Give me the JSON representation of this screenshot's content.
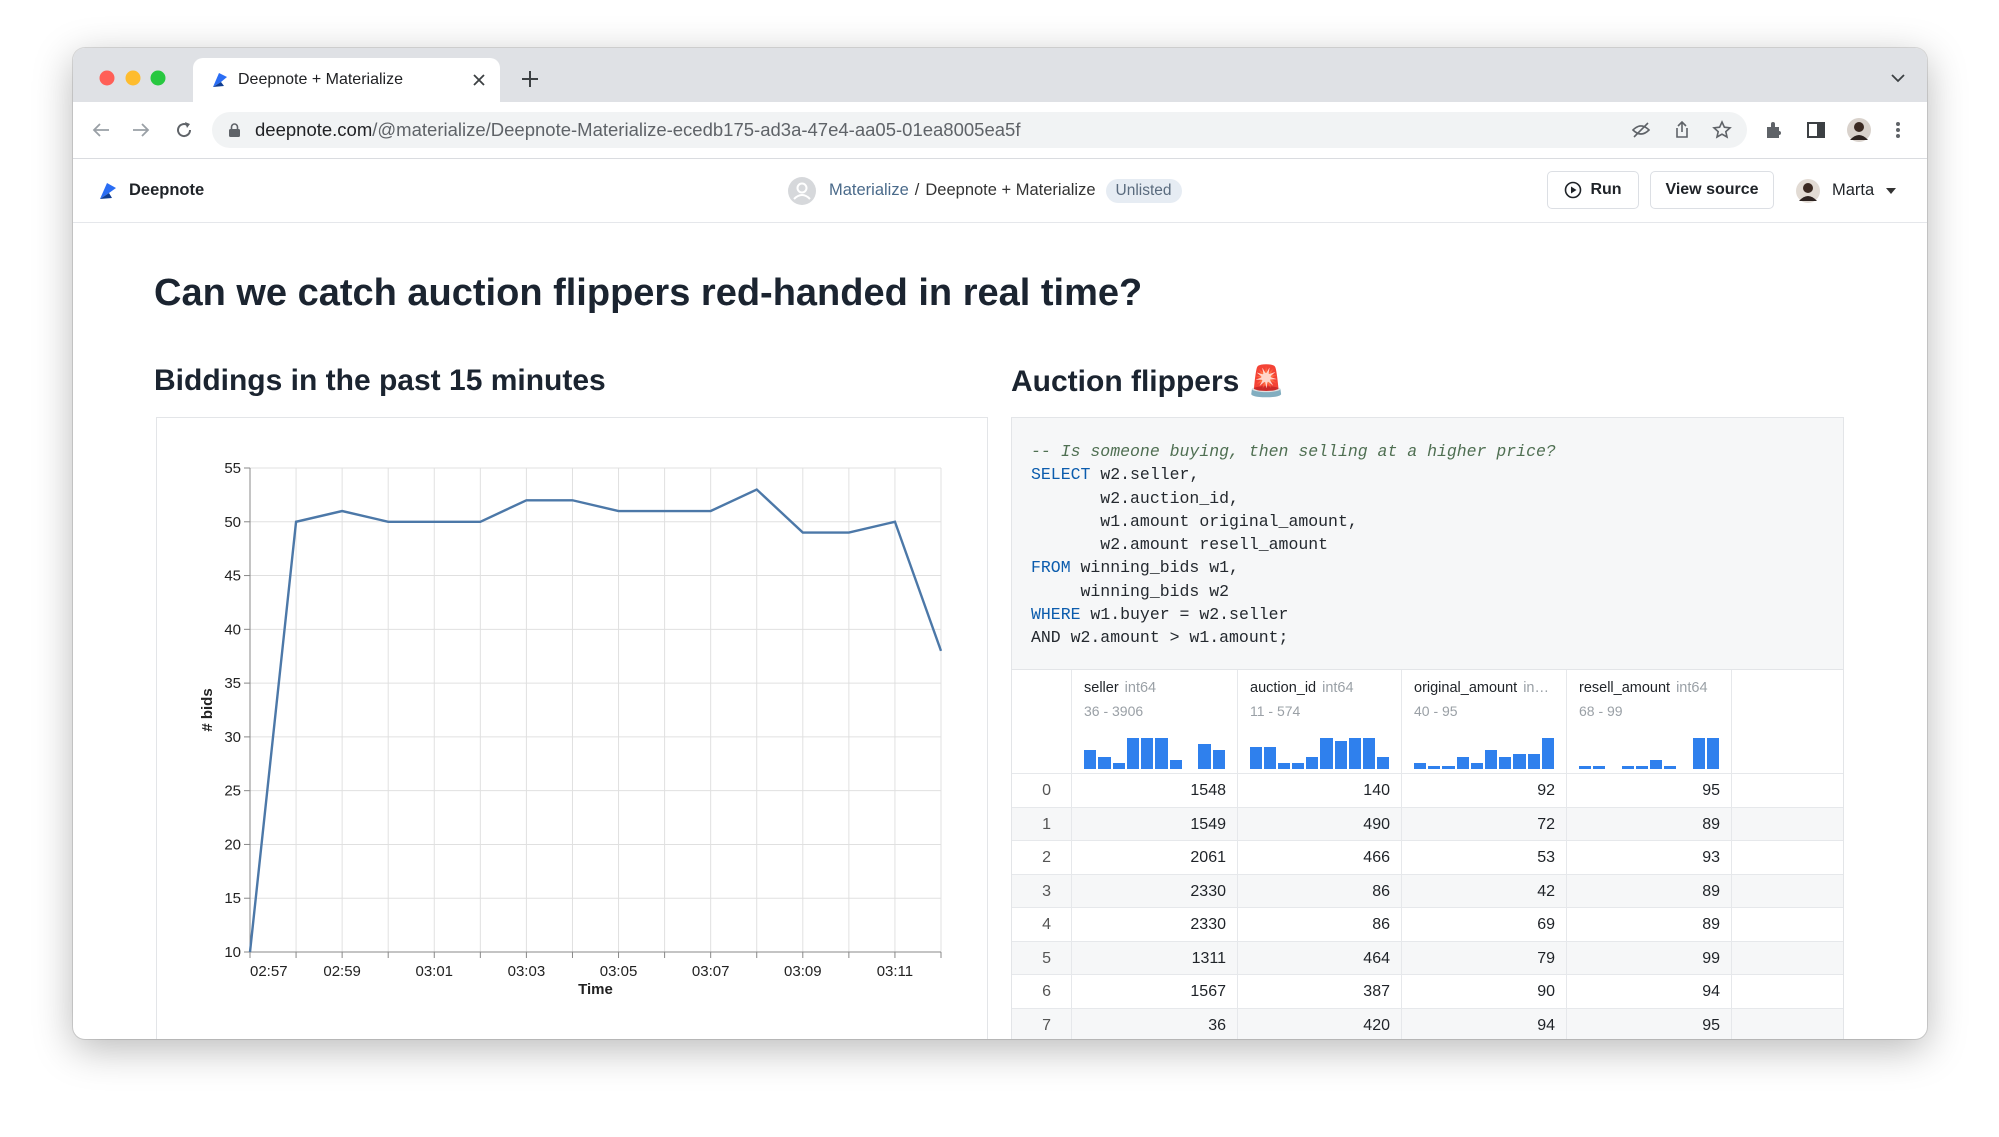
{
  "browser": {
    "tab_title": "Deepnote + Materialize",
    "url_host": "deepnote.com",
    "url_path": "/@materialize/Deepnote-Materialize-ecedb175-ad3a-47e4-aa05-01ea8005ea5f"
  },
  "header": {
    "brand": "Deepnote",
    "workspace": "Materialize",
    "separator": "/",
    "project": "Deepnote + Materialize",
    "badge": "Unlisted",
    "run": "Run",
    "view_source": "View source",
    "user": "Marta"
  },
  "page": {
    "title": "Can we catch auction flippers red-handed in real time?",
    "left_heading": "Biddings in the past 15 minutes",
    "right_heading": "Auction flippers 🚨"
  },
  "chart": {
    "type": "line",
    "x_label": "Time",
    "y_label": "# bids",
    "categories": [
      "02:57",
      "02:58",
      "02:59",
      "03:00",
      "03:01",
      "03:02",
      "03:03",
      "03:04",
      "03:05",
      "03:06",
      "03:07",
      "03:08",
      "03:09",
      "03:10",
      "03:11",
      "03:12"
    ],
    "values": [
      10,
      50,
      51,
      50,
      50,
      50,
      52,
      52,
      51,
      51,
      51,
      53,
      49,
      49,
      50,
      38
    ],
    "color": "#4c78a8",
    "xticks": [
      "02:57",
      "02:59",
      "03:01",
      "03:03",
      "03:05",
      "03:07",
      "03:09",
      "03:11"
    ],
    "ylim": [
      10,
      55
    ],
    "yticks": [
      10,
      15,
      20,
      25,
      30,
      35,
      40,
      45,
      50,
      55
    ],
    "grid": true
  },
  "query": {
    "lines": [
      {
        "comment": "-- Is someone buying, then selling at a higher price?"
      },
      {
        "keyword": "SELECT",
        "text": " w2.seller,"
      },
      {
        "text": "       w2.auction_id,"
      },
      {
        "text": "       w1.amount original_amount,"
      },
      {
        "text": "       w2.amount resell_amount"
      },
      {
        "keyword": "FROM",
        "text": " winning_bids w1,"
      },
      {
        "text": "     winning_bids w2"
      },
      {
        "keyword": "WHERE",
        "text": " w1.buyer = w2.seller"
      },
      {
        "text": "AND w2.amount > w1.amount;"
      }
    ]
  },
  "table": {
    "columns": [
      {
        "name": "seller",
        "dtype": "int64",
        "range": "36 - 3906",
        "histogram": [
          6,
          4,
          2,
          10,
          10,
          10,
          3,
          0,
          8,
          6
        ]
      },
      {
        "name": "auction_id",
        "dtype": "int64",
        "range": "11 - 574",
        "histogram": [
          7,
          7,
          2,
          2,
          4,
          10,
          9,
          10,
          10,
          4
        ]
      },
      {
        "name": "original_amount",
        "dtype": "in…",
        "range": "40 - 95",
        "histogram": [
          2,
          1,
          1,
          4,
          2,
          6,
          4,
          5,
          5,
          10
        ]
      },
      {
        "name": "resell_amount",
        "dtype": "int64",
        "range": "68 - 99",
        "histogram": [
          1,
          1,
          0,
          1,
          1,
          3,
          1,
          0,
          10,
          10
        ]
      }
    ],
    "rows": [
      [
        0,
        1548,
        140,
        92,
        95
      ],
      [
        1,
        1549,
        490,
        72,
        89
      ],
      [
        2,
        2061,
        466,
        53,
        93
      ],
      [
        3,
        2330,
        86,
        42,
        89
      ],
      [
        4,
        2330,
        86,
        69,
        89
      ],
      [
        5,
        1311,
        464,
        79,
        99
      ],
      [
        6,
        1567,
        387,
        90,
        94
      ],
      [
        7,
        36,
        420,
        94,
        95
      ]
    ]
  }
}
